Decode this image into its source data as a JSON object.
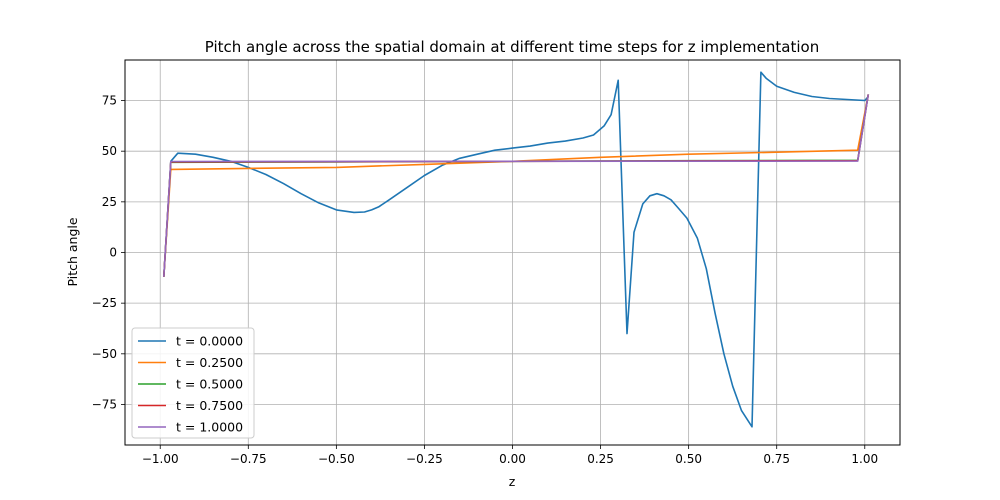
{
  "chart_data": {
    "type": "line",
    "title": "Pitch angle across the spatial domain at different time steps for z implementation",
    "xlabel": "z",
    "ylabel": "Pitch angle",
    "xlim": [
      -1.1,
      1.1
    ],
    "ylim": [
      -95,
      95
    ],
    "xticks": [
      -1.0,
      -0.75,
      -0.5,
      -0.25,
      0.0,
      0.25,
      0.5,
      0.75,
      1.0
    ],
    "xtick_labels": [
      "−1.00",
      "−0.75",
      "−0.50",
      "−0.25",
      "0.00",
      "0.25",
      "0.50",
      "0.75",
      "1.00"
    ],
    "yticks": [
      -75,
      -50,
      -25,
      0,
      25,
      50,
      75
    ],
    "ytick_labels": [
      "−75",
      "−50",
      "−25",
      "0",
      "25",
      "50",
      "75"
    ],
    "grid": true,
    "legend_position": "lower-left",
    "series": [
      {
        "name": "t = 0.0000",
        "color": "#1f77b4",
        "x": [
          -0.99,
          -0.97,
          -0.95,
          -0.9,
          -0.85,
          -0.8,
          -0.75,
          -0.7,
          -0.65,
          -0.6,
          -0.55,
          -0.5,
          -0.45,
          -0.42,
          -0.4,
          -0.38,
          -0.35,
          -0.3,
          -0.25,
          -0.2,
          -0.15,
          -0.1,
          -0.05,
          0.0,
          0.05,
          0.1,
          0.15,
          0.2,
          0.23,
          0.26,
          0.28,
          0.3,
          0.325,
          0.345,
          0.37,
          0.39,
          0.41,
          0.43,
          0.45,
          0.47,
          0.495,
          0.525,
          0.55,
          0.575,
          0.6,
          0.625,
          0.65,
          0.68,
          0.705,
          0.72,
          0.75,
          0.8,
          0.85,
          0.9,
          0.95,
          1.0,
          1.01
        ],
        "values": [
          -12,
          45,
          49,
          48.5,
          47,
          45,
          42,
          38.5,
          34,
          29,
          24.5,
          21,
          19.8,
          20,
          21,
          22.5,
          26,
          32,
          38,
          43,
          46.5,
          48.5,
          50.5,
          51.5,
          52.5,
          54,
          55,
          56.5,
          58,
          62.5,
          68,
          85,
          -40,
          10,
          24,
          28,
          29,
          28,
          26,
          22,
          17,
          7,
          -8,
          -30,
          -50,
          -66,
          -78,
          -86,
          89,
          86,
          82,
          79,
          77,
          76,
          75.5,
          75,
          77
        ]
      },
      {
        "name": "t = 0.2500",
        "color": "#ff7f0e",
        "x": [
          -0.99,
          -0.97,
          -0.75,
          -0.5,
          -0.25,
          0.0,
          0.25,
          0.5,
          0.75,
          0.98,
          1.01
        ],
        "values": [
          -12,
          41,
          41.5,
          42,
          43.5,
          45,
          47,
          48.5,
          49.5,
          50.5,
          78
        ]
      },
      {
        "name": "t = 0.5000",
        "color": "#2ca02c",
        "x": [
          -0.99,
          -0.97,
          -0.5,
          0.0,
          0.5,
          0.98,
          1.01
        ],
        "values": [
          -12,
          44.5,
          44.7,
          45,
          45.3,
          45.5,
          78
        ]
      },
      {
        "name": "t = 0.7500",
        "color": "#d62728",
        "x": [
          -0.99,
          -0.97,
          -0.5,
          0.0,
          0.5,
          0.98,
          1.01
        ],
        "values": [
          -12,
          44.7,
          44.8,
          45,
          45.2,
          45.3,
          78
        ]
      },
      {
        "name": "t = 1.0000",
        "color": "#9467bd",
        "x": [
          -0.99,
          -0.97,
          -0.5,
          0.0,
          0.5,
          0.98,
          1.01
        ],
        "values": [
          -12,
          44.9,
          44.95,
          45,
          45.05,
          45.1,
          78
        ]
      }
    ]
  }
}
